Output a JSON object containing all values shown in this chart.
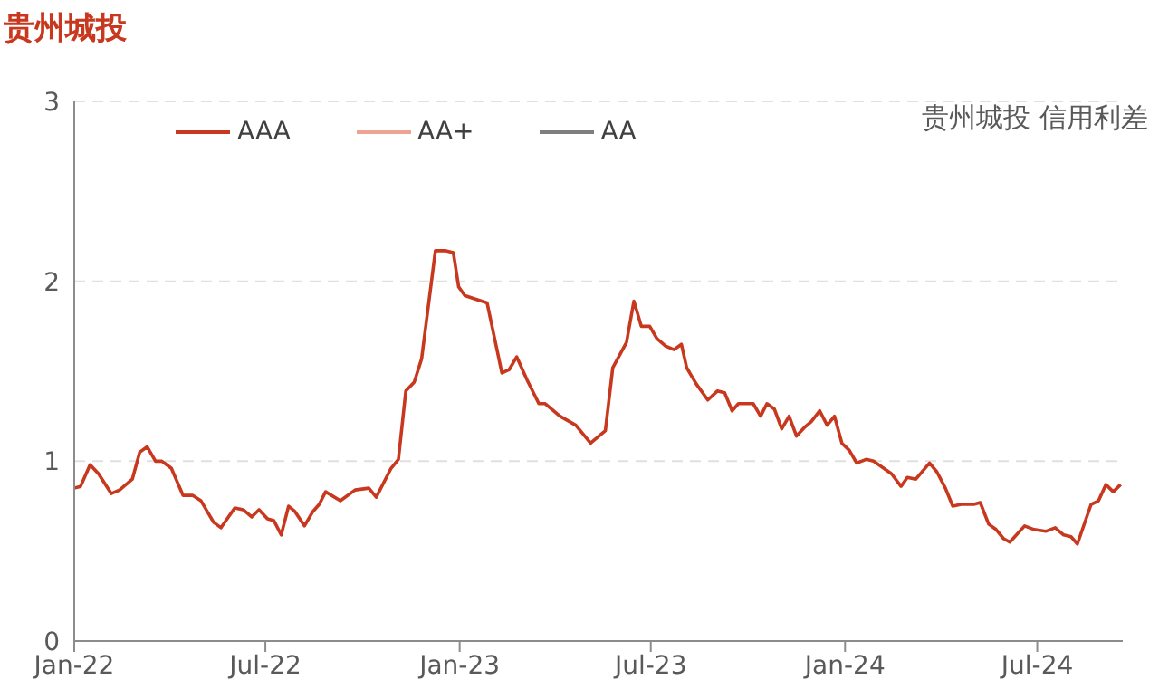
{
  "chart_data": {
    "type": "line",
    "title": "贵州城投",
    "annotations": [
      "贵州城投 信用利差"
    ],
    "x": [
      "2022-01-01",
      "2022-01-07",
      "2022-01-16",
      "2022-01-24",
      "2022-02-05",
      "2022-02-13",
      "2022-02-25",
      "2022-03-04",
      "2022-03-11",
      "2022-03-19",
      "2022-03-25",
      "2022-04-03",
      "2022-04-14",
      "2022-04-23",
      "2022-05-01",
      "2022-05-13",
      "2022-05-20",
      "2022-06-02",
      "2022-06-10",
      "2022-06-18",
      "2022-06-25",
      "2022-07-03",
      "2022-07-09",
      "2022-07-16",
      "2022-07-23",
      "2022-07-29",
      "2022-08-07",
      "2022-08-15",
      "2022-08-21",
      "2022-08-27",
      "2022-09-10",
      "2022-09-24",
      "2022-10-07",
      "2022-10-14",
      "2022-10-28",
      "2022-11-04",
      "2022-11-11",
      "2022-11-19",
      "2022-11-26",
      "2022-12-09",
      "2022-12-19",
      "2022-12-26",
      "2022-12-31",
      "2023-01-06",
      "2023-01-27",
      "2023-02-10",
      "2023-02-17",
      "2023-02-24",
      "2023-03-06",
      "2023-03-17",
      "2023-03-23",
      "2023-04-06",
      "2023-04-21",
      "2023-05-05",
      "2023-05-19",
      "2023-05-26",
      "2023-06-08",
      "2023-06-15",
      "2023-06-22",
      "2023-06-30",
      "2023-07-07",
      "2023-07-15",
      "2023-07-23",
      "2023-07-30",
      "2023-08-04",
      "2023-08-13",
      "2023-08-24",
      "2023-09-02",
      "2023-09-09",
      "2023-09-16",
      "2023-09-22",
      "2023-10-06",
      "2023-10-13",
      "2023-10-19",
      "2023-10-26",
      "2023-11-02",
      "2023-11-09",
      "2023-11-16",
      "2023-11-24",
      "2023-11-30",
      "2023-12-08",
      "2023-12-15",
      "2023-12-22",
      "2023-12-29",
      "2024-01-05",
      "2024-01-12",
      "2024-01-21",
      "2024-01-28",
      "2024-02-14",
      "2024-02-23",
      "2024-02-29",
      "2024-03-08",
      "2024-03-21",
      "2024-03-28",
      "2024-04-05",
      "2024-04-12",
      "2024-04-20",
      "2024-05-02",
      "2024-05-08",
      "2024-05-16",
      "2024-05-23",
      "2024-05-30",
      "2024-06-05",
      "2024-06-19",
      "2024-06-28",
      "2024-07-09",
      "2024-07-18",
      "2024-07-26",
      "2024-08-02",
      "2024-08-08",
      "2024-08-21",
      "2024-08-28",
      "2024-09-04",
      "2024-09-11",
      "2024-09-18"
    ],
    "series": [
      {
        "name": "AAA",
        "color": "#c8381e",
        "values": [
          0.85,
          0.86,
          0.98,
          0.93,
          0.82,
          0.84,
          0.9,
          1.05,
          1.08,
          1.0,
          1.0,
          0.96,
          0.81,
          0.81,
          0.78,
          0.66,
          0.63,
          0.74,
          0.73,
          0.69,
          0.73,
          0.68,
          0.67,
          0.59,
          0.75,
          0.72,
          0.64,
          0.72,
          0.76,
          0.83,
          0.78,
          0.84,
          0.85,
          0.8,
          0.96,
          1.01,
          1.39,
          1.44,
          1.57,
          2.17,
          2.17,
          2.16,
          1.97,
          1.92,
          1.88,
          1.49,
          1.51,
          1.58,
          1.45,
          1.32,
          1.32,
          1.25,
          1.2,
          1.1,
          1.17,
          1.52,
          1.66,
          1.89,
          1.75,
          1.75,
          1.68,
          1.64,
          1.62,
          1.65,
          1.52,
          1.43,
          1.34,
          1.39,
          1.38,
          1.28,
          1.32,
          1.32,
          1.25,
          1.32,
          1.29,
          1.18,
          1.25,
          1.14,
          1.19,
          1.22,
          1.28,
          1.2,
          1.25,
          1.1,
          1.06,
          0.99,
          1.01,
          1.0,
          0.93,
          0.86,
          0.91,
          0.9,
          0.99,
          0.94,
          0.85,
          0.75,
          0.76,
          0.76,
          0.77,
          0.65,
          0.62,
          0.57,
          0.55,
          0.64,
          0.62,
          0.61,
          0.63,
          0.59,
          0.58,
          0.54,
          0.76,
          0.78,
          0.87,
          0.83,
          0.87
        ]
      },
      {
        "name": "AA+",
        "color": "#eda393",
        "values": [
          null,
          null,
          null,
          null,
          null,
          null,
          null,
          null,
          null,
          null,
          null,
          null,
          null,
          null,
          null,
          null,
          null,
          null,
          null,
          null,
          null,
          null,
          null,
          null,
          null,
          null,
          null,
          null,
          null,
          null,
          null,
          null,
          null,
          null,
          null,
          null,
          null,
          null,
          null,
          null,
          null,
          null,
          null,
          null,
          null,
          null,
          null,
          null,
          null,
          null,
          null,
          null,
          null,
          null,
          null,
          null,
          null,
          null,
          null,
          null,
          null,
          null,
          null,
          null,
          null,
          null,
          null,
          null,
          null,
          null,
          null,
          null,
          null,
          null,
          null,
          null,
          null,
          null,
          null,
          null,
          null,
          null,
          null,
          null,
          null,
          null,
          null,
          null,
          null,
          null,
          null,
          null,
          null,
          null,
          null,
          null,
          null,
          null,
          null,
          null,
          null,
          null,
          null,
          null,
          null,
          null,
          null,
          null,
          null,
          null,
          null,
          null,
          null,
          null,
          null
        ]
      },
      {
        "name": "AA",
        "color": "#7f7f7f",
        "values": [
          null,
          null,
          null,
          null,
          null,
          null,
          null,
          null,
          null,
          null,
          null,
          null,
          null,
          null,
          null,
          null,
          null,
          null,
          null,
          null,
          null,
          null,
          null,
          null,
          null,
          null,
          null,
          null,
          null,
          null,
          null,
          null,
          null,
          null,
          null,
          null,
          null,
          null,
          null,
          null,
          null,
          null,
          null,
          null,
          null,
          null,
          null,
          null,
          null,
          null,
          null,
          null,
          null,
          null,
          null,
          null,
          null,
          null,
          null,
          null,
          null,
          null,
          null,
          null,
          null,
          null,
          null,
          null,
          null,
          null,
          null,
          null,
          null,
          null,
          null,
          null,
          null,
          null,
          null,
          null,
          null,
          null,
          null,
          null,
          null,
          null,
          null,
          null,
          null,
          null,
          null,
          null,
          null,
          null,
          null,
          null,
          null,
          null,
          null,
          null,
          null,
          null,
          null,
          null,
          null,
          null,
          null,
          null,
          null,
          null,
          null,
          null,
          null,
          null,
          null
        ]
      }
    ],
    "xlim": [
      "2022-01-01",
      "2024-09-20"
    ],
    "xticks": [
      {
        "value": "2022-01-01",
        "label": "Jan-22"
      },
      {
        "value": "2022-07-01",
        "label": "Jul-22"
      },
      {
        "value": "2023-01-01",
        "label": "Jan-23"
      },
      {
        "value": "2023-07-01",
        "label": "Jul-23"
      },
      {
        "value": "2024-01-01",
        "label": "Jan-24"
      },
      {
        "value": "2024-07-01",
        "label": "Jul-24"
      }
    ],
    "ylim": [
      0,
      3
    ],
    "yticks": [
      0,
      1,
      2,
      3
    ],
    "grid": "y",
    "legend": "top"
  }
}
